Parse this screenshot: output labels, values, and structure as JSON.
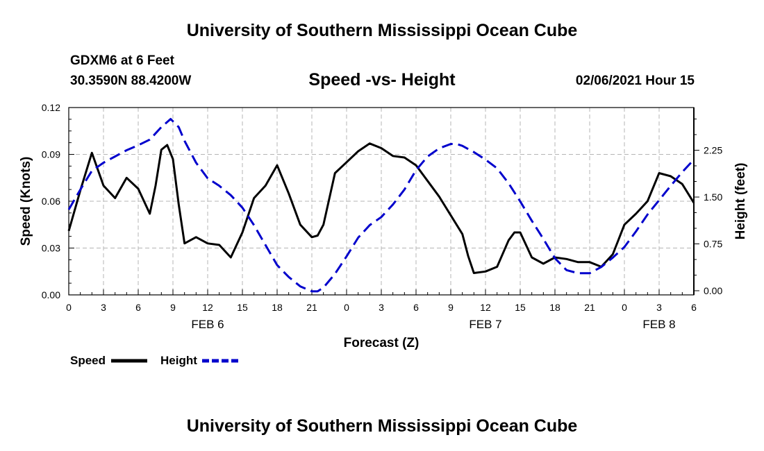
{
  "header": {
    "title": "University of Southern Mississippi Ocean Cube",
    "station": "GDXM6 at 6 Feet",
    "coords": "30.3590N 88.4200W",
    "subtitle": "Speed -vs- Height",
    "datetime": "02/06/2021 Hour 15"
  },
  "footer": {
    "title": "University of Southern Mississippi Ocean Cube"
  },
  "chart_data": {
    "type": "line",
    "title": "Speed -vs- Height",
    "xlabel": "Forecast (Z)",
    "ylabel": "Speed (Knots)",
    "y2label": "Height (feet)",
    "xlim": [
      0,
      54
    ],
    "ylim": [
      0,
      0.12
    ],
    "y2lim": [
      -0.0667,
      2.9333
    ],
    "grid": true,
    "x_ticks": [
      0,
      3,
      6,
      9,
      12,
      15,
      18,
      21,
      24,
      27,
      30,
      33,
      36,
      39,
      42,
      45,
      48,
      51,
      54
    ],
    "x_tick_labels": [
      "0",
      "3",
      "6",
      "9",
      "12",
      "15",
      "18",
      "21",
      "0",
      "3",
      "6",
      "9",
      "12",
      "15",
      "18",
      "21",
      "0",
      "3",
      "6"
    ],
    "y_ticks": [
      0,
      0.03,
      0.06,
      0.09,
      0.12
    ],
    "y_tick_labels": [
      "0.00",
      "0.03",
      "0.06",
      "0.09",
      "0.12"
    ],
    "y2_ticks": [
      0,
      0.75,
      1.5,
      2.25
    ],
    "y2_tick_labels": [
      "0.00",
      "0.75",
      "1.50",
      "2.25"
    ],
    "date_labels": [
      {
        "label": "FEB 6",
        "x": 12
      },
      {
        "label": "FEB 7",
        "x": 36
      },
      {
        "label": "FEB 8",
        "x": 51
      }
    ],
    "legend": [
      {
        "name": "Speed",
        "color": "#000000",
        "dash": "solid"
      },
      {
        "name": "Height",
        "color": "#0000cc",
        "dash": "dashed"
      }
    ],
    "legend_position": "bottom-left",
    "series": [
      {
        "name": "Speed",
        "axis": "left",
        "color": "#000000",
        "x": [
          0,
          1,
          2,
          3,
          4,
          5,
          6,
          7,
          7.5,
          8,
          8.5,
          9,
          9.5,
          10,
          11,
          12,
          13,
          14,
          15,
          16,
          17,
          18,
          19,
          20,
          21,
          21.5,
          22,
          23,
          24,
          25,
          26,
          27,
          28,
          29,
          30,
          31,
          32,
          33,
          34,
          34.5,
          35,
          36,
          37,
          38,
          38.5,
          39,
          40,
          41,
          42,
          43,
          44,
          45,
          46,
          47,
          48,
          49,
          50,
          51,
          52,
          53,
          54
        ],
        "y": [
          0.041,
          0.067,
          0.091,
          0.07,
          0.062,
          0.075,
          0.068,
          0.052,
          0.07,
          0.093,
          0.096,
          0.087,
          0.058,
          0.033,
          0.037,
          0.033,
          0.032,
          0.024,
          0.04,
          0.062,
          0.07,
          0.083,
          0.065,
          0.045,
          0.037,
          0.038,
          0.045,
          0.078,
          0.085,
          0.092,
          0.097,
          0.094,
          0.089,
          0.088,
          0.083,
          0.073,
          0.063,
          0.051,
          0.039,
          0.025,
          0.014,
          0.015,
          0.018,
          0.035,
          0.04,
          0.04,
          0.024,
          0.02,
          0.024,
          0.023,
          0.021,
          0.021,
          0.018,
          0.026,
          0.045,
          0.052,
          0.06,
          0.078,
          0.076,
          0.071,
          0.059
        ]
      },
      {
        "name": "Height",
        "axis": "right",
        "color": "#0000cc",
        "x": [
          0,
          1,
          2,
          3,
          4,
          5,
          6,
          7,
          8,
          8.8,
          9.5,
          10,
          11,
          12,
          13,
          14,
          15,
          16,
          17,
          18,
          19,
          20,
          21,
          21.5,
          22,
          23,
          24,
          25,
          26,
          27,
          28,
          29,
          30,
          31,
          32,
          33,
          33.5,
          34,
          35,
          36,
          37,
          38,
          39,
          40,
          41,
          42,
          43,
          44,
          45,
          46,
          47,
          48,
          49,
          50,
          51,
          52,
          53,
          54
        ],
        "y": [
          1.3,
          1.62,
          1.92,
          2.05,
          2.15,
          2.25,
          2.33,
          2.42,
          2.62,
          2.75,
          2.62,
          2.4,
          2.05,
          1.8,
          1.68,
          1.53,
          1.33,
          1.05,
          0.73,
          0.41,
          0.22,
          0.07,
          -0.01,
          -0.01,
          0.05,
          0.27,
          0.55,
          0.85,
          1.05,
          1.18,
          1.38,
          1.62,
          1.93,
          2.15,
          2.28,
          2.35,
          2.35,
          2.32,
          2.22,
          2.1,
          1.96,
          1.72,
          1.43,
          1.12,
          0.83,
          0.52,
          0.33,
          0.28,
          0.28,
          0.38,
          0.53,
          0.7,
          0.95,
          1.22,
          1.45,
          1.68,
          1.9,
          2.1
        ]
      }
    ]
  }
}
